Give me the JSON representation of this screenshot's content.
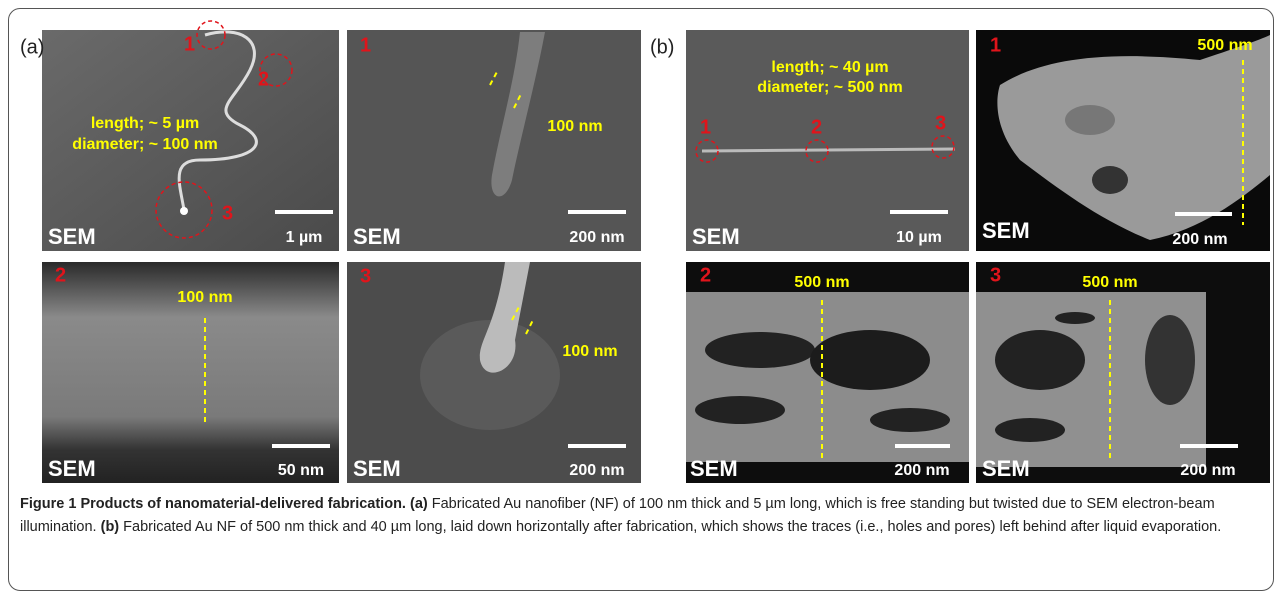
{
  "figure": {
    "panels": [
      "(a)",
      "(b)"
    ],
    "images": [
      {
        "sem": "SEM",
        "scale": "1 µm",
        "markers": [
          "1",
          "2",
          "3"
        ],
        "notes": [
          "length; ~ 5 µm",
          "diameter; ~ 100 nm"
        ]
      },
      {
        "label": "1",
        "sem": "SEM",
        "scale": "200 nm",
        "notes": [
          "100 nm"
        ]
      },
      {
        "sem": "SEM",
        "scale": "10 µm",
        "markers": [
          "1",
          "2",
          "3"
        ],
        "notes": [
          "length; ~ 40 µm",
          "diameter; ~ 500 nm"
        ]
      },
      {
        "label": "1",
        "sem": "SEM",
        "scale": "200 nm",
        "notes": [
          "500 nm"
        ]
      },
      {
        "label": "2",
        "sem": "SEM",
        "scale": "50 nm",
        "notes": [
          "100 nm"
        ]
      },
      {
        "label": "3",
        "sem": "SEM",
        "scale": "200 nm",
        "notes": [
          "100 nm"
        ]
      },
      {
        "label": "2",
        "sem": "SEM",
        "scale": "200 nm",
        "notes": [
          "500 nm"
        ]
      },
      {
        "label": "3",
        "sem": "SEM",
        "scale": "200 nm",
        "notes": [
          "500 nm"
        ]
      }
    ]
  },
  "caption": {
    "figure": "Figure 1",
    "title": "Products of nanomaterial-delivered fabrication.",
    "parts": [
      {
        "label": "(a)",
        "text": "Fabricated Au nanofiber (NF) of 100 nm thick and 5 µm long, which is free standing but twisted due to SEM electron-beam illumination."
      },
      {
        "label": "(b)",
        "text": "Fabricated Au NF of 500 nm thick and 40 µm long, laid down horizontally after fabrication, which shows the traces (i.e., holes and pores) left behind after liquid evaporation."
      }
    ]
  }
}
